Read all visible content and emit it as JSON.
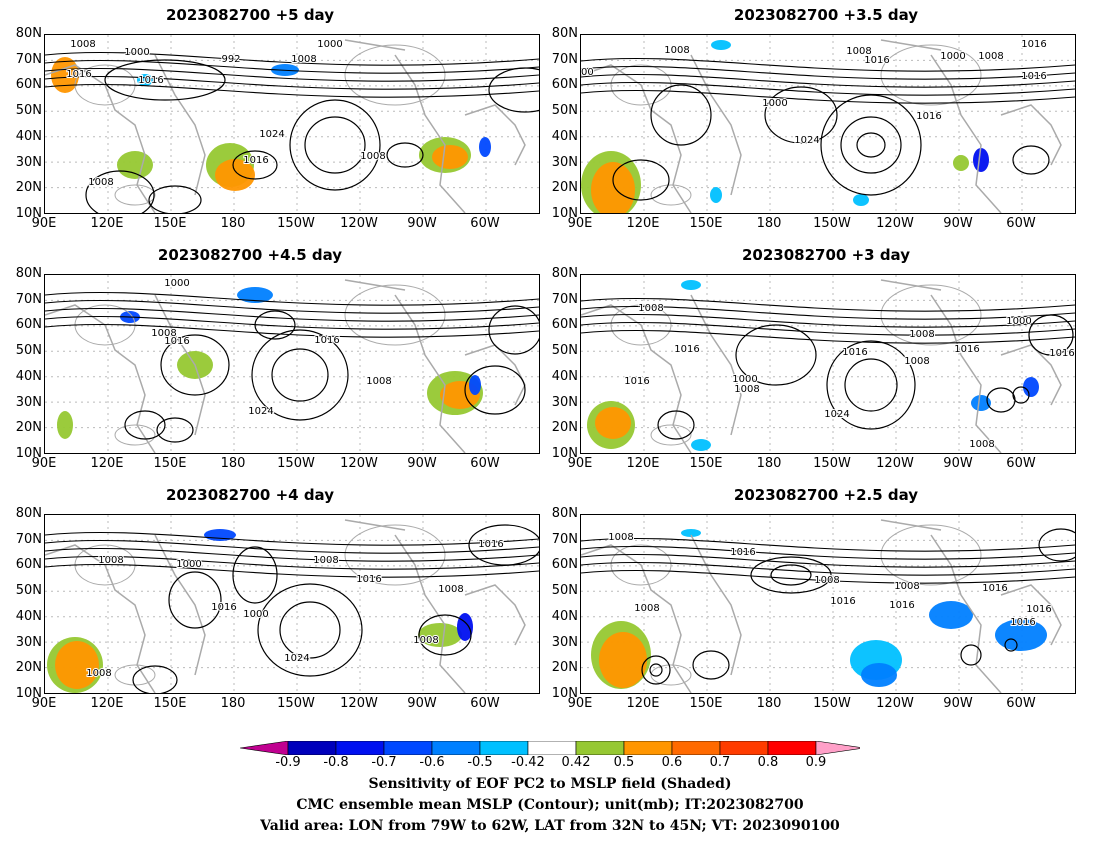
{
  "panels": [
    {
      "title": "2023082700  +5 day"
    },
    {
      "title": "2023082700  +3.5 day"
    },
    {
      "title": "2023082700  +4.5 day"
    },
    {
      "title": "2023082700  +3 day"
    },
    {
      "title": "2023082700  +4 day"
    },
    {
      "title": "2023082700  +2.5 day"
    }
  ],
  "axes": {
    "lat_labels": [
      "80N",
      "70N",
      "60N",
      "50N",
      "40N",
      "30N",
      "20N",
      "10N"
    ],
    "lon_labels": [
      "90E",
      "120E",
      "150E",
      "180",
      "150W",
      "120W",
      "90W",
      "60W"
    ]
  },
  "contour_labels": {
    "p0": [
      "1008",
      "1000",
      "992",
      "1008",
      "1000",
      "1016",
      "1016",
      "1024",
      "1016",
      "1008",
      "1008",
      "1000"
    ],
    "p1": [
      "1008",
      "1000",
      "1016",
      "1008",
      "1000",
      "1024",
      "1016",
      "1008",
      "1000",
      "1016",
      "1016"
    ],
    "p2": [
      "1000",
      "1008",
      "1016",
      "1016",
      "1024",
      "1008",
      "016"
    ],
    "p3": [
      "1008",
      "1016",
      "1016",
      "1000",
      "1008",
      "1024",
      "1016",
      "1008",
      "1008",
      "1016",
      "1000",
      "1016",
      "1008"
    ],
    "p4": [
      "1008",
      "1000",
      "1008",
      "1016",
      "1016",
      "1000",
      "1024",
      "1008",
      "1008",
      "1008",
      "1016"
    ],
    "p5": [
      "1008",
      "1016",
      "1008",
      "1016",
      "1016",
      "1008",
      "1016",
      "1016",
      "1016",
      "1008"
    ]
  },
  "colorbar": {
    "labels": [
      "-0.9",
      "-0.8",
      "-0.7",
      "-0.6",
      "-0.5",
      "-0.42",
      "0.42",
      "0.5",
      "0.6",
      "0.7",
      "0.8",
      "0.9"
    ],
    "colors": [
      "#0000bb",
      "#0010f0",
      "#0048ff",
      "#0080ff",
      "#00c0ff",
      "#ffffff",
      "#96c832",
      "#ff9600",
      "#ff6a00",
      "#ff3c00",
      "#ff0000"
    ],
    "low_color": "#c00090",
    "high_color": "#ffa0c8"
  },
  "caption": {
    "line1": "Sensitivity of EOF PC2 to MSLP field (Shaded)",
    "line2": "CMC ensemble mean MSLP (Contour); unit(mb); IT:2023082700",
    "line3": "Valid area: LON from 79W to 62W, LAT from 32N to 45N; VT: 2023090100"
  }
}
